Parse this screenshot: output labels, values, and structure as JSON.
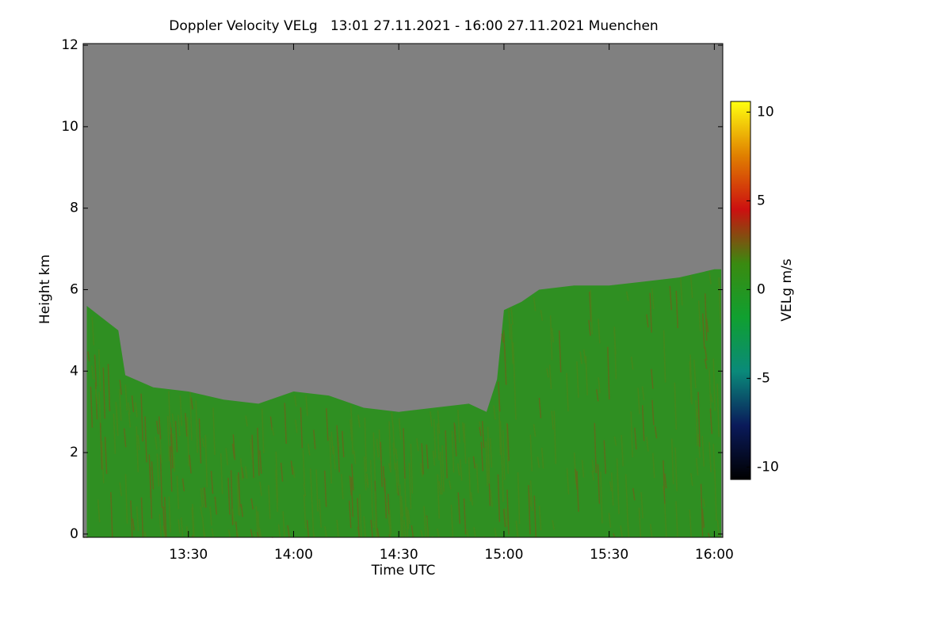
{
  "chart_data": {
    "type": "heatmap",
    "title": "Doppler Velocity VELg   13:01 27.11.2021 - 16:00 27.11.2021 Muenchen",
    "x_label": "Time UTC",
    "y_label": "Height km",
    "colorbar_label": "VELg m/s",
    "x": [
      13.017,
      13.167,
      13.2,
      13.333,
      13.5,
      13.667,
      13.833,
      14,
      14.167,
      14.333,
      14.5,
      14.667,
      14.833,
      14.917,
      14.967,
      15,
      15.083,
      15.167,
      15.333,
      15.5,
      15.667,
      15.833,
      16,
      16.033
    ],
    "values": [
      5.6,
      5.0,
      3.9,
      3.6,
      3.5,
      3.3,
      3.2,
      3.5,
      3.4,
      3.1,
      3.0,
      3.1,
      3.2,
      3.0,
      3.8,
      5.5,
      5.7,
      6.0,
      6.1,
      6.1,
      6.2,
      6.3,
      6.5,
      6.5
    ],
    "color": "#2f8f22",
    "background": "#808080",
    "xlim": [
      13.0,
      16.04
    ],
    "xticks": [
      {
        "value": 13.5,
        "label": "13:30"
      },
      {
        "value": 14,
        "label": "14:00"
      },
      {
        "value": 14.5,
        "label": "14:30"
      },
      {
        "value": 15,
        "label": "15:00"
      },
      {
        "value": 15.5,
        "label": "15:30"
      },
      {
        "value": 16,
        "label": "16:00"
      }
    ],
    "ylim": [
      -0.08,
      12.04
    ],
    "yticks": [
      0,
      2,
      4,
      6,
      8,
      10,
      12
    ],
    "clim": [
      -10.7,
      10.6
    ],
    "cticks": [
      -10,
      -5,
      0,
      5,
      10
    ],
    "colormap": [
      "#000000",
      "#0a1a5a",
      "#0a8a7a",
      "#10a030",
      "#3a8a10",
      "#cc1010",
      "#e08000",
      "#ffff10"
    ]
  }
}
